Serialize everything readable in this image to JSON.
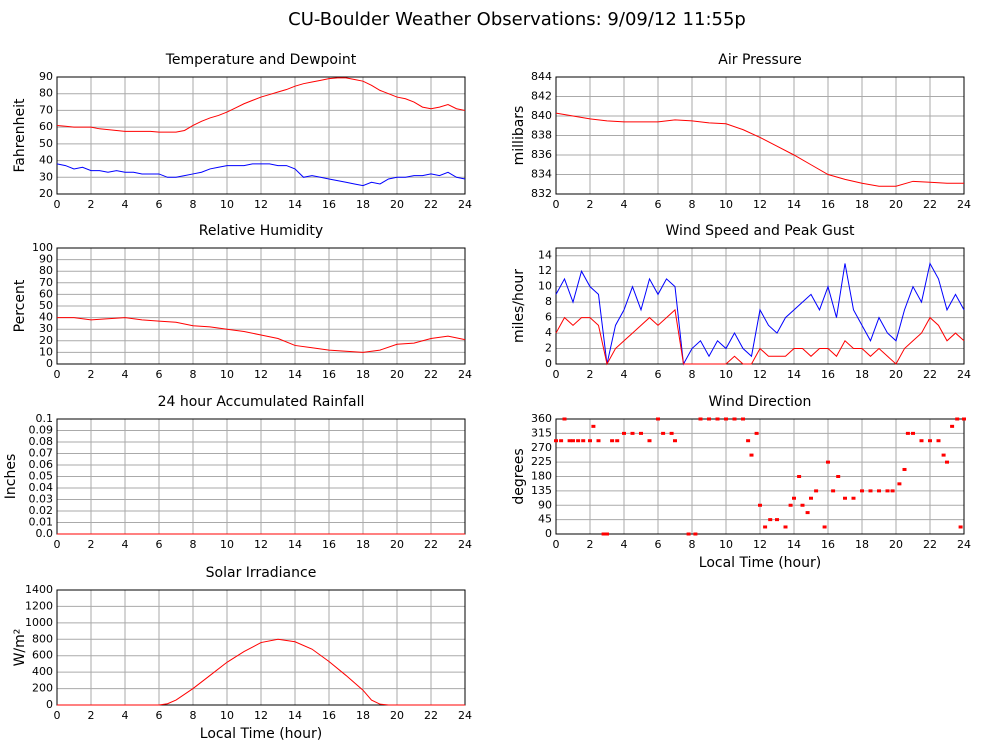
{
  "title": "CU-Boulder Weather Observations: 9/09/12 11:55p",
  "chart_data": [
    {
      "type": "line",
      "title": "Temperature and Dewpoint",
      "ylabel": "Fahrenheit",
      "x": [
        0,
        0.5,
        1,
        1.5,
        2,
        2.5,
        3,
        3.5,
        4,
        4.5,
        5,
        5.5,
        6,
        6.5,
        7,
        7.5,
        8,
        8.5,
        9,
        9.5,
        10,
        10.5,
        11,
        11.5,
        12,
        12.5,
        13,
        13.5,
        14,
        14.5,
        15,
        15.5,
        16,
        16.5,
        17,
        17.5,
        18,
        18.5,
        19,
        19.5,
        20,
        20.5,
        21,
        21.5,
        22,
        22.5,
        23,
        23.5,
        24
      ],
      "series": [
        {
          "color": "#ff0000",
          "values": [
            61,
            60.5,
            60,
            60,
            60,
            59,
            58.5,
            58,
            57.5,
            57.5,
            57.5,
            57.5,
            57,
            57,
            57,
            58,
            61,
            63.5,
            65.5,
            67,
            69,
            71.5,
            74,
            76,
            78,
            79.5,
            81,
            82.5,
            84.5,
            86,
            87,
            88,
            89,
            89.5,
            89.5,
            88.5,
            87.5,
            85,
            82,
            80,
            78,
            77,
            75,
            72,
            71,
            72,
            73.5,
            71,
            70
          ]
        },
        {
          "color": "#0000ff",
          "values": [
            38,
            37,
            35,
            36,
            34,
            34,
            33,
            34,
            33,
            33,
            32,
            32,
            32,
            30,
            30,
            31,
            32,
            33,
            35,
            36,
            37,
            37,
            37,
            38,
            38,
            38,
            37,
            37,
            35,
            30,
            31,
            30,
            29,
            28,
            27,
            26,
            25,
            27,
            26,
            29,
            30,
            30,
            31,
            31,
            32,
            31,
            33,
            30,
            29
          ]
        }
      ],
      "xlim": [
        0,
        24
      ],
      "xticks": [
        0,
        2,
        4,
        6,
        8,
        10,
        12,
        14,
        16,
        18,
        20,
        22,
        24
      ],
      "ylim": [
        20,
        90
      ],
      "yticks": [
        20,
        30,
        40,
        50,
        60,
        70,
        80,
        90
      ],
      "grid": true
    },
    {
      "type": "line",
      "title": "Air Pressure",
      "ylabel": "millibars",
      "x": [
        0,
        1,
        2,
        3,
        4,
        5,
        6,
        7,
        8,
        9,
        10,
        11,
        12,
        13,
        14,
        15,
        16,
        17,
        18,
        19,
        20,
        21,
        22,
        23,
        24
      ],
      "series": [
        {
          "color": "#ff0000",
          "values": [
            840.3,
            840,
            839.7,
            839.5,
            839.4,
            839.4,
            839.4,
            839.6,
            839.5,
            839.3,
            839.2,
            838.6,
            837.8,
            836.9,
            836,
            835,
            834,
            833.5,
            833.1,
            832.8,
            832.8,
            833.3,
            833.2,
            833.1,
            833.1
          ]
        }
      ],
      "xlim": [
        0,
        24
      ],
      "xticks": [
        0,
        2,
        4,
        6,
        8,
        10,
        12,
        14,
        16,
        18,
        20,
        22,
        24
      ],
      "ylim": [
        832,
        844
      ],
      "yticks": [
        832,
        834,
        836,
        838,
        840,
        842,
        844
      ],
      "grid": true
    },
    {
      "type": "line",
      "title": "Relative Humidity",
      "ylabel": "Percent",
      "x": [
        0,
        1,
        2,
        3,
        4,
        5,
        6,
        7,
        8,
        9,
        10,
        11,
        12,
        13,
        14,
        15,
        16,
        17,
        18,
        19,
        20,
        21,
        22,
        23,
        24
      ],
      "series": [
        {
          "color": "#ff0000",
          "values": [
            40,
            40,
            38,
            39,
            40,
            38,
            37,
            36,
            33,
            32,
            30,
            28,
            25,
            22,
            16,
            14,
            12,
            11,
            10,
            12,
            17,
            18,
            22,
            24,
            21
          ]
        }
      ],
      "xlim": [
        0,
        24
      ],
      "xticks": [
        0,
        2,
        4,
        6,
        8,
        10,
        12,
        14,
        16,
        18,
        20,
        22,
        24
      ],
      "ylim": [
        0,
        100
      ],
      "yticks": [
        0,
        10,
        20,
        30,
        40,
        50,
        60,
        70,
        80,
        90,
        100
      ],
      "grid": true
    },
    {
      "type": "line",
      "title": "Wind Speed and Peak Gust",
      "ylabel": "miles/hour",
      "x": [
        0,
        0.5,
        1,
        1.5,
        2,
        2.5,
        3,
        3.5,
        4,
        4.5,
        5,
        5.5,
        6,
        6.5,
        7,
        7.5,
        8,
        8.5,
        9,
        9.5,
        10,
        10.5,
        11,
        11.5,
        12,
        12.5,
        13,
        13.5,
        14,
        14.5,
        15,
        15.5,
        16,
        16.5,
        17,
        17.5,
        18,
        18.5,
        19,
        19.5,
        20,
        20.5,
        21,
        21.5,
        22,
        22.5,
        23,
        23.5,
        24
      ],
      "series": [
        {
          "color": "#0000ff",
          "values": [
            9,
            11,
            8,
            12,
            10,
            9,
            0,
            5,
            7,
            10,
            7,
            11,
            9,
            11,
            10,
            0,
            2,
            3,
            1,
            3,
            2,
            4,
            2,
            1,
            7,
            5,
            4,
            6,
            7,
            8,
            9,
            7,
            10,
            6,
            13,
            7,
            5,
            3,
            6,
            4,
            3,
            7,
            10,
            8,
            13,
            11,
            7,
            9,
            7
          ]
        },
        {
          "color": "#ff0000",
          "values": [
            4,
            6,
            5,
            6,
            6,
            5,
            0,
            2,
            3,
            4,
            5,
            6,
            5,
            6,
            7,
            0,
            0,
            0,
            0,
            0,
            0,
            1,
            0,
            0,
            2,
            1,
            1,
            1,
            2,
            2,
            1,
            2,
            2,
            1,
            3,
            2,
            2,
            1,
            2,
            1,
            0,
            2,
            3,
            4,
            6,
            5,
            3,
            4,
            3
          ]
        }
      ],
      "xlim": [
        0,
        24
      ],
      "xticks": [
        0,
        2,
        4,
        6,
        8,
        10,
        12,
        14,
        16,
        18,
        20,
        22,
        24
      ],
      "ylim": [
        0,
        15
      ],
      "yticks": [
        0,
        2,
        4,
        6,
        8,
        10,
        12,
        14
      ],
      "grid": true
    },
    {
      "type": "line",
      "title": "24 hour Accumulated Rainfall",
      "ylabel": "Inches",
      "x": [
        0,
        24
      ],
      "series": [
        {
          "color": "#ff0000",
          "values": [
            0,
            0
          ]
        }
      ],
      "xlim": [
        0,
        24
      ],
      "xticks": [
        0,
        2,
        4,
        6,
        8,
        10,
        12,
        14,
        16,
        18,
        20,
        22,
        24
      ],
      "ylim": [
        0,
        0.1
      ],
      "yticks": [
        {
          "value": 0,
          "label": "0.0"
        },
        0.01,
        0.02,
        0.03,
        0.04,
        0.05,
        0.06,
        0.07,
        0.08,
        0.09,
        0.1
      ],
      "grid": true
    },
    {
      "type": "scatter",
      "title": "Wind Direction",
      "ylabel": "degrees",
      "xlabel": "Local Time (hour)",
      "x": [
        0,
        0.3,
        0.5,
        0.8,
        1,
        1.3,
        1.6,
        2,
        2.2,
        2.5,
        2.8,
        3,
        3.3,
        3.6,
        4,
        4.5,
        5,
        5.5,
        6,
        6.3,
        6.8,
        7,
        7.8,
        8.2,
        8.5,
        9,
        9.5,
        10,
        10.5,
        11,
        11.3,
        11.5,
        11.8,
        12,
        12.3,
        12.6,
        13,
        13.5,
        13.8,
        14,
        14.3,
        14.5,
        14.8,
        15,
        15.3,
        15.8,
        16,
        16.3,
        16.6,
        17,
        17.5,
        18,
        18.5,
        19,
        19.5,
        19.8,
        20.2,
        20.5,
        20.7,
        21,
        21.5,
        22,
        22.5,
        22.8,
        23,
        23.3,
        23.6,
        23.8,
        24
      ],
      "series": [
        {
          "color": "#ff0000",
          "values": [
            292,
            292,
            360,
            292,
            292,
            292,
            292,
            292,
            337,
            292,
            0,
            0,
            292,
            292,
            315,
            315,
            315,
            292,
            360,
            315,
            315,
            292,
            0,
            0,
            360,
            360,
            360,
            360,
            360,
            360,
            292,
            247,
            315,
            90,
            22,
            45,
            45,
            22,
            90,
            112,
            180,
            90,
            67,
            112,
            135,
            22,
            225,
            135,
            180,
            112,
            112,
            135,
            135,
            135,
            135,
            135,
            157,
            202,
            315,
            315,
            292,
            292,
            292,
            247,
            225,
            337,
            360,
            22,
            360
          ]
        }
      ],
      "xlim": [
        0,
        24
      ],
      "xticks": [
        0,
        2,
        4,
        6,
        8,
        10,
        12,
        14,
        16,
        18,
        20,
        22,
        24
      ],
      "ylim": [
        0,
        360
      ],
      "yticks": [
        0,
        45,
        90,
        135,
        180,
        225,
        270,
        315,
        360
      ],
      "grid": true
    },
    {
      "type": "line",
      "title": "Solar Irradiance",
      "ylabel": "W/m²",
      "xlabel": "Local Time (hour)",
      "x": [
        0,
        6,
        6.5,
        7,
        8,
        9,
        10,
        11,
        12,
        13,
        14,
        15,
        16,
        17,
        18,
        18.5,
        19,
        19.5,
        24
      ],
      "series": [
        {
          "color": "#ff0000",
          "values": [
            0,
            0,
            15,
            60,
            200,
            360,
            520,
            650,
            760,
            800,
            770,
            680,
            530,
            360,
            180,
            60,
            10,
            0,
            0
          ]
        }
      ],
      "xlim": [
        0,
        24
      ],
      "xticks": [
        0,
        2,
        4,
        6,
        8,
        10,
        12,
        14,
        16,
        18,
        20,
        22,
        24
      ],
      "ylim": [
        0,
        1400
      ],
      "yticks": [
        0,
        200,
        400,
        600,
        800,
        1000,
        1200,
        1400
      ],
      "grid": true
    }
  ]
}
